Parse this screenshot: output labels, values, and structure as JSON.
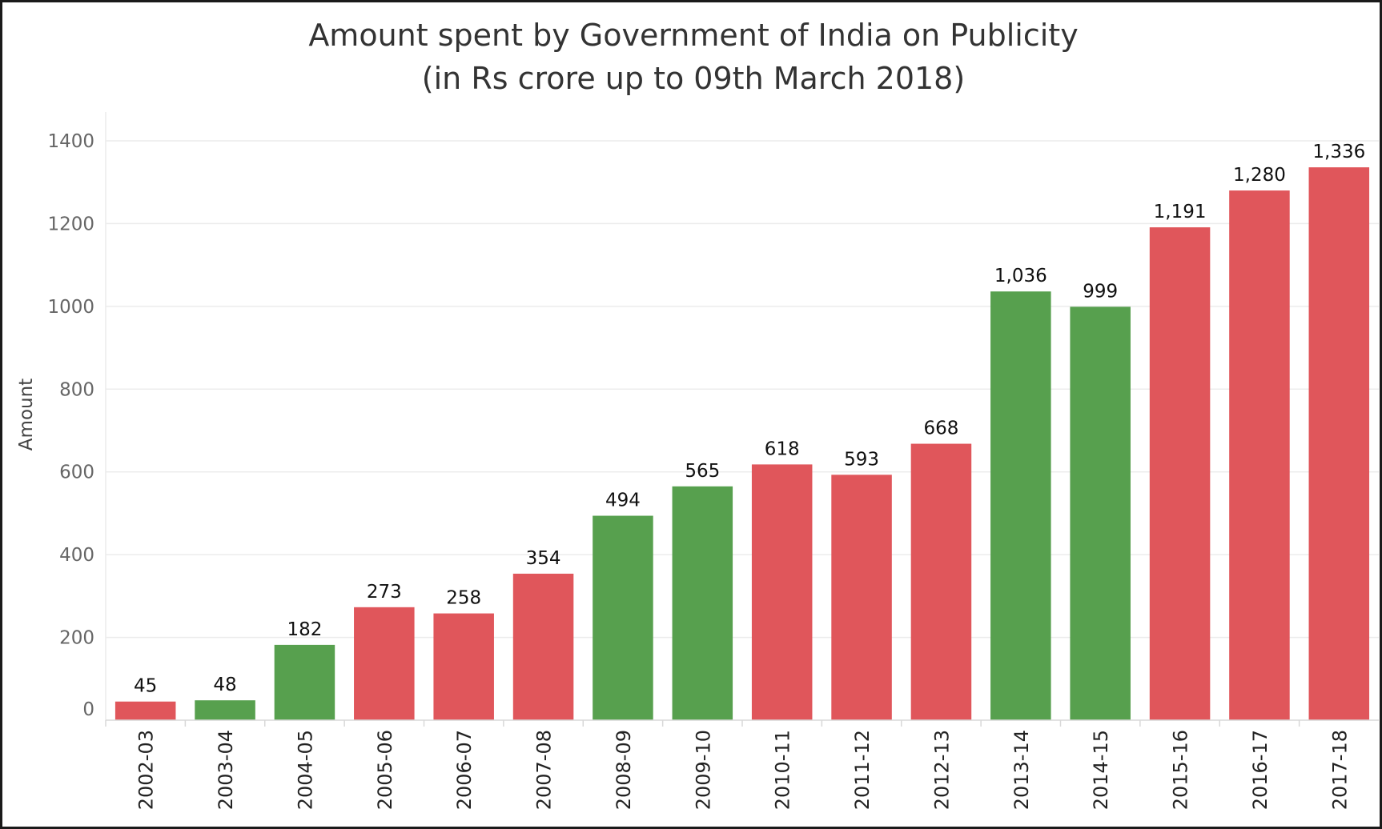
{
  "chart_data": {
    "type": "bar",
    "title": "Amount spent by Government of India on Publicity",
    "subtitle": "(in Rs crore up to 09th March 2018)",
    "xlabel": "",
    "ylabel": "Amount",
    "ylim": [
      0,
      1400
    ],
    "yticks": [
      0,
      200,
      400,
      600,
      800,
      1000,
      1200,
      1400
    ],
    "grid": true,
    "categories": [
      "2002-03",
      "2003-04",
      "2004-05",
      "2005-06",
      "2006-07",
      "2007-08",
      "2008-09",
      "2009-10",
      "2010-11",
      "2011-12",
      "2012-13",
      "2013-14",
      "2014-15",
      "2015-16",
      "2016-17",
      "2017-18"
    ],
    "values": [
      45,
      48,
      182,
      273,
      258,
      354,
      494,
      565,
      618,
      593,
      668,
      1036,
      999,
      1191,
      1280,
      1336
    ],
    "data_labels": [
      "45",
      "48",
      "182",
      "273",
      "258",
      "354",
      "494",
      "565",
      "618",
      "593",
      "668",
      "1,036",
      "999",
      "1,191",
      "1,280",
      "1,336"
    ],
    "bar_colors": [
      "#e0565b",
      "#57a04e",
      "#57a04e",
      "#e0565b",
      "#e0565b",
      "#e0565b",
      "#57a04e",
      "#57a04e",
      "#e0565b",
      "#e0565b",
      "#e0565b",
      "#57a04e",
      "#57a04e",
      "#e0565b",
      "#e0565b",
      "#e0565b"
    ]
  }
}
